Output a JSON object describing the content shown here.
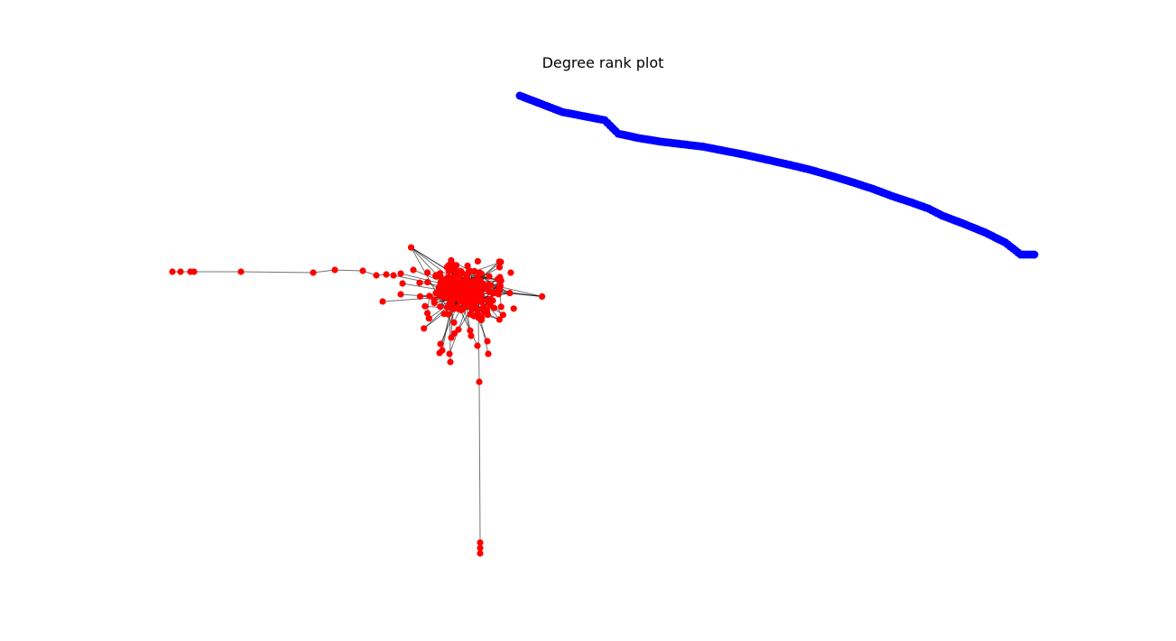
{
  "chart_data": [
    {
      "type": "line",
      "title": "Degree rank plot",
      "xlabel": "",
      "ylabel": "",
      "xscale": "log",
      "yscale": "log",
      "axes_visible": false,
      "grid": false,
      "color": "#0000ff",
      "marker": "circle",
      "series": [
        {
          "x": [
            1,
            2,
            3,
            4,
            5,
            7,
            10,
            14,
            20,
            28,
            40,
            56,
            80,
            115,
            160,
            225,
            320,
            450,
            600,
            800,
            1000,
            1400,
            2000,
            2800,
            3600,
            4500
          ],
          "y": [
            55,
            43,
            40,
            38,
            31,
            29,
            27.5,
            26.5,
            25.5,
            24,
            22.5,
            21,
            19.5,
            18,
            16.5,
            15,
            13.5,
            12,
            11,
            10,
            9,
            8,
            7,
            6,
            5,
            5
          ]
        }
      ]
    },
    {
      "type": "network",
      "node_color": "#ff0000",
      "edge_color": "#000000",
      "axes_visible": false
    }
  ]
}
